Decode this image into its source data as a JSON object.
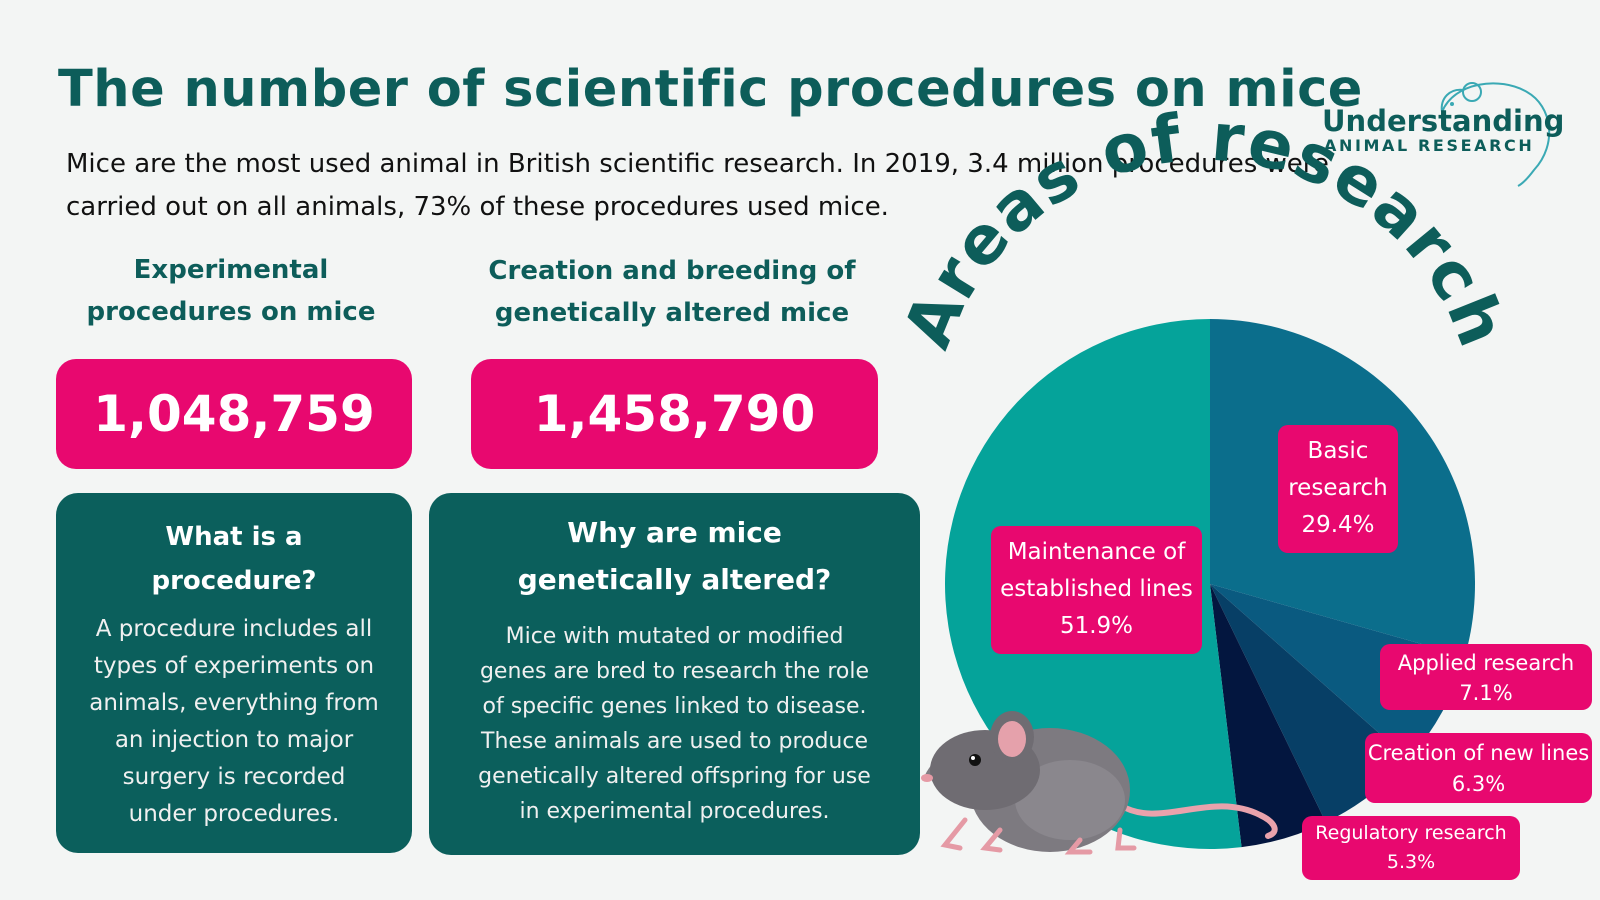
{
  "title": "The number of scientific procedures on mice",
  "intro": "Mice are the most used animal in British scientific research. In 2019, 3.4 million procedures were carried out on all animals, 73% of these procedures used mice.",
  "logo": {
    "line1": "Understanding",
    "line2": "ANIMAL RESEARCH",
    "icon": "mouse-outline-icon"
  },
  "stats": [
    {
      "heading": [
        "Experimental",
        "procedures on mice"
      ],
      "value": "1,048,759"
    },
    {
      "heading": [
        "Creation and breeding of",
        "genetically altered mice"
      ],
      "value": "1,458,790"
    }
  ],
  "info_boxes": [
    {
      "question": [
        "What is a",
        "procedure?"
      ],
      "answer": [
        "A procedure includes all",
        "types of experiments on",
        "animals, everything from",
        "an injection to major",
        "surgery is recorded",
        "under procedures."
      ]
    },
    {
      "question": [
        "Why are mice",
        "genetically altered?"
      ],
      "answer": [
        "Mice with mutated or modified",
        "genes are bred to research the role",
        "of specific genes linked to disease.",
        "These animals are used to produce",
        "genetically altered offspring for use",
        "in experimental procedures."
      ]
    }
  ],
  "chart_data": {
    "type": "pie",
    "title": "Areas of research",
    "slices": [
      {
        "label": [
          "Basic",
          "research"
        ],
        "value": 29.4,
        "value_label": "29.4%",
        "color": "#0b6e8c"
      },
      {
        "label": [
          "Applied research"
        ],
        "value": 7.1,
        "value_label": "7.1%",
        "color": "#0a5a80"
      },
      {
        "label": [
          "Creation of new lines"
        ],
        "value": 6.3,
        "value_label": "6.3%",
        "color": "#073f66"
      },
      {
        "label": [
          "Regulatory research"
        ],
        "value": 5.3,
        "value_label": "5.3%",
        "color": "#03163f"
      },
      {
        "label": [
          "Maintenance of",
          "established lines"
        ],
        "value": 51.9,
        "value_label": "51.9%",
        "color": "#05a39a"
      }
    ]
  },
  "colors": {
    "accent": "#e8086f",
    "dark_teal": "#0b5f5c",
    "title_teal": "#0d5d5a",
    "background": "#f3f5f4"
  },
  "illustration": {
    "icon": "mouse-illustration"
  }
}
